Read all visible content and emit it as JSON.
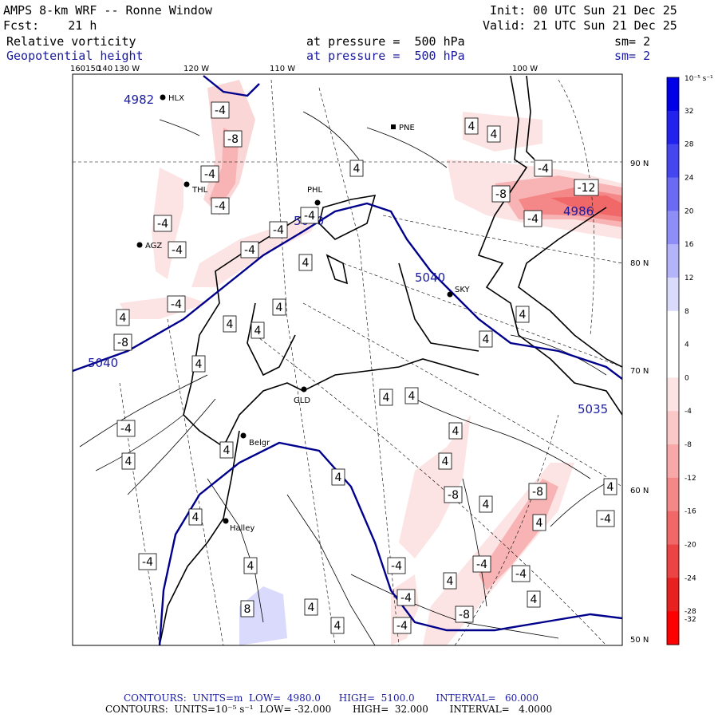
{
  "header": {
    "title": "AMPS 8-km WRF -- Ronne Window",
    "forecast": "Fcst:    21 h",
    "init": "Init: 00 UTC Sun 21 Dec 25",
    "valid": "Valid: 21 UTC Sun 21 Dec 25",
    "field1_name": "Relative vorticity",
    "field1_level": "at pressure =  500 hPa",
    "field1_smooth": "sm= 2",
    "field2_name": "Geopotential height",
    "field2_level": "at pressure =  500 hPa",
    "field2_smooth": "sm= 2"
  },
  "top_lon_labels": [
    "160150",
    "140",
    "130 W",
    "120 W",
    "110 W",
    "100 W"
  ],
  "right_lat_labels": [
    "90 N",
    "80 N",
    "70 N",
    "60 N",
    "50 N"
  ],
  "stations": [
    {
      "name": "HLX"
    },
    {
      "name": "PNE"
    },
    {
      "name": "THL"
    },
    {
      "name": "PHL"
    },
    {
      "name": "AGZ"
    },
    {
      "name": "SKY"
    },
    {
      "name": "GLD"
    },
    {
      "name": "Belgr"
    },
    {
      "name": "Halley"
    }
  ],
  "height_labels": [
    "4982",
    "5040",
    "5040",
    "5040",
    "4986",
    "5035"
  ],
  "vort_labels": [
    "-4",
    "-8",
    "-4",
    "-4",
    "-4",
    "-4",
    "-4",
    "-4",
    "-4",
    "4",
    "4",
    "4",
    "4",
    "4",
    "-4",
    "-8",
    "-12",
    "-4",
    "-4",
    "4",
    "4",
    "4",
    "4",
    "4",
    "-4",
    "4",
    "4",
    "-4",
    "4",
    "-8",
    "-8",
    "4",
    "-4",
    "-4",
    "-4",
    "-4",
    "4",
    "4",
    "4",
    "8",
    "4",
    "4",
    "-8",
    "-4",
    "4",
    "4",
    "-4",
    "4",
    "-8",
    "4",
    "4",
    "4",
    "4",
    "4"
  ],
  "colorbar": {
    "unit": "10⁻⁵ s⁻¹",
    "ticks": [
      "32",
      "28",
      "24",
      "20",
      "16",
      "12",
      "8",
      "4",
      "0",
      "-4",
      "-8",
      "-12",
      "-16",
      "-20",
      "-24",
      "-28",
      "-32"
    ],
    "colors": [
      "#0000e8",
      "#2222ee",
      "#4646f0",
      "#6a6af4",
      "#8e8ef6",
      "#b4b4fa",
      "#dadafc",
      "#ffffff",
      "#ffffff",
      "#fde4e4",
      "#fbc8c8",
      "#f8a8a8",
      "#f48888",
      "#f06868",
      "#ec4444",
      "#e82020",
      "#ff0000"
    ]
  },
  "footer": {
    "line1": "CONTOURS:  UNITS=m  LOW=  4980.0      HIGH=  5100.0       INTERVAL=   60.000",
    "line2": "CONTOURS:  UNITS=10⁻⁵ s⁻¹  LOW= -32.000       HIGH=  32.000       INTERVAL=   4.0000"
  }
}
